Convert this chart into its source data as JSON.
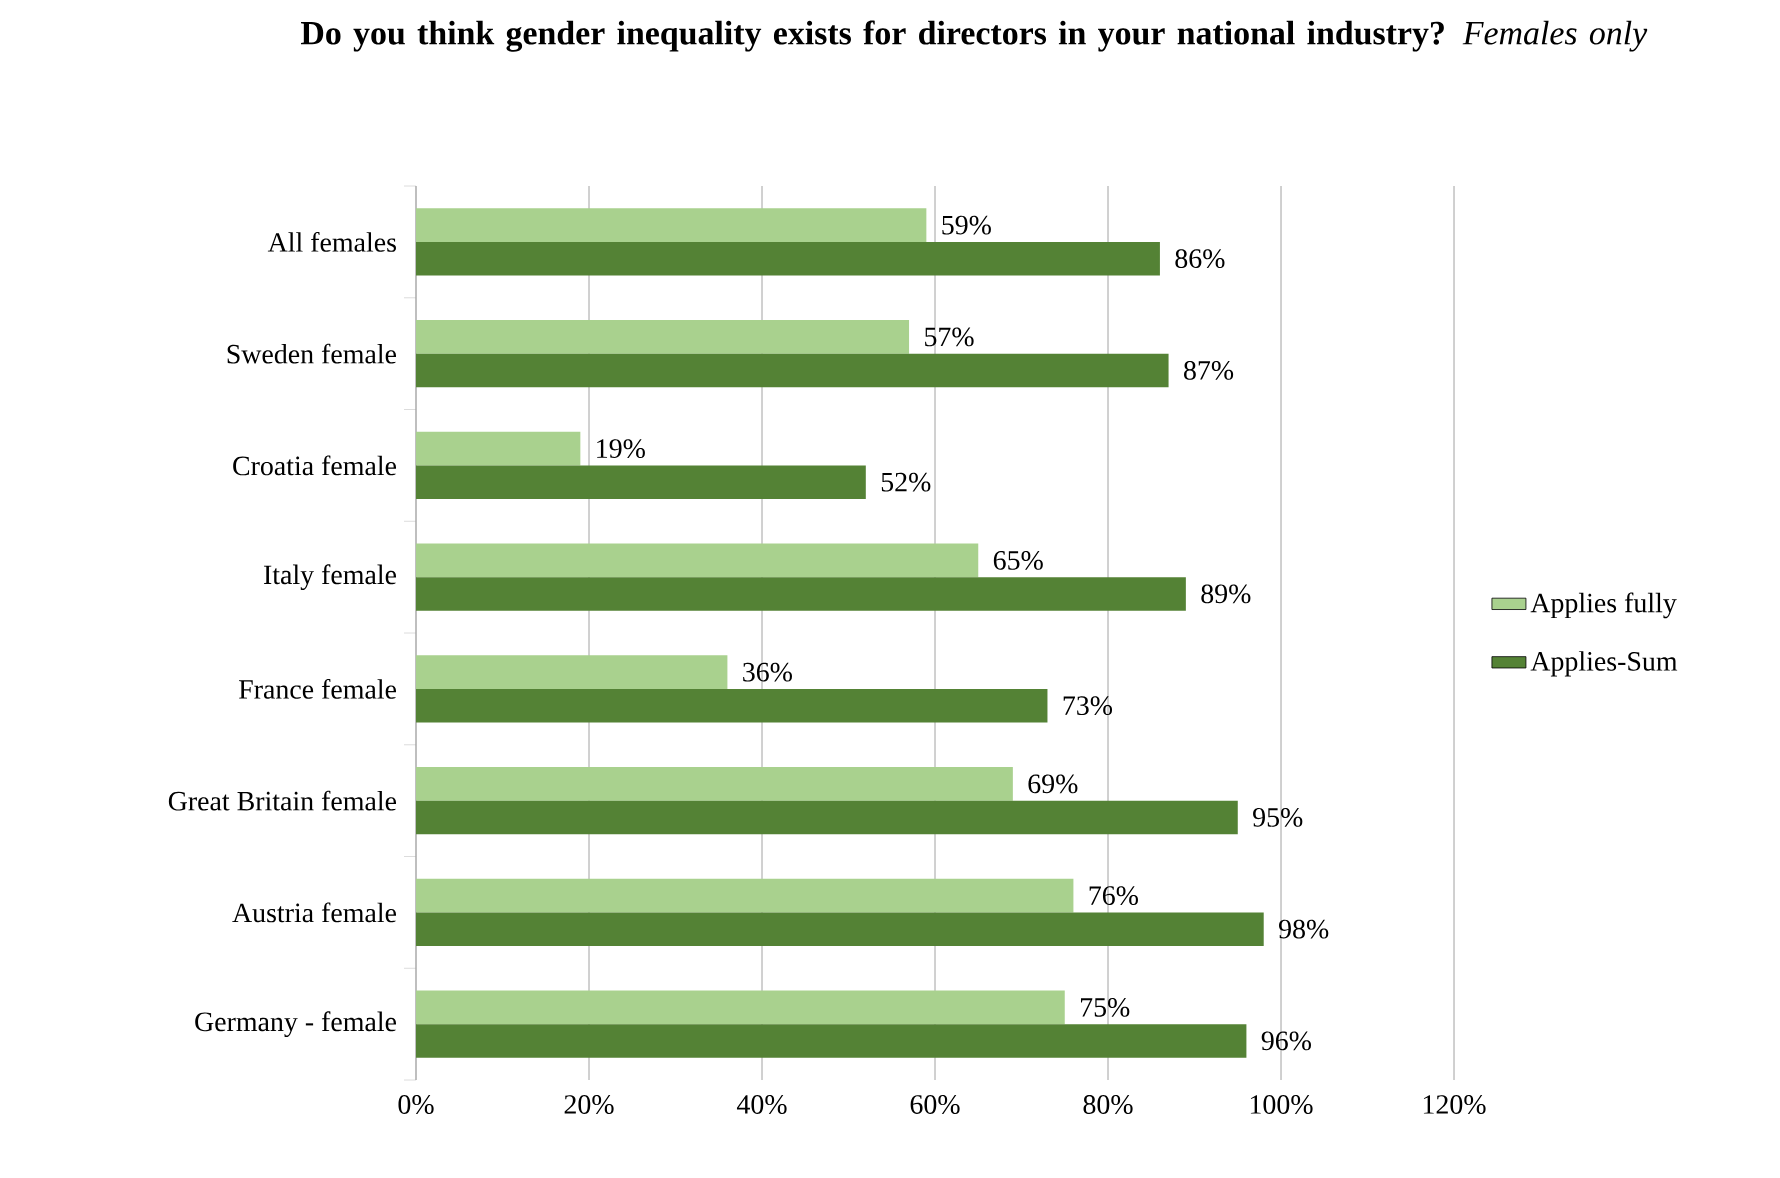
{
  "chart_data": {
    "type": "bar",
    "orientation": "horizontal",
    "title": "**Do you think gender inequality exists for directors in your national industry?** *Females only*",
    "categories": [
      "All females",
      "Sweden female",
      "Croatia female",
      "Italy female",
      "France female",
      "Great Britain female",
      "Austria female",
      "Germany - female"
    ],
    "series": [
      {
        "name": "Applies fully",
        "color": "#a9d18e",
        "values": [
          59,
          57,
          19,
          65,
          36,
          69,
          76,
          75
        ],
        "value_labels": [
          "59%",
          "57%",
          "19%",
          "65%",
          "36%",
          "69%",
          "76%",
          "75%"
        ]
      },
      {
        "name": "Applies-Sum",
        "color": "#548235",
        "values": [
          86,
          87,
          52,
          89,
          73,
          95,
          98,
          96
        ],
        "value_labels": [
          "86%",
          "87%",
          "52%",
          "89%",
          "73%",
          "95%",
          "98%",
          "96%"
        ]
      }
    ],
    "xlim": [
      0,
      120
    ],
    "xticks": [
      {
        "value": 0,
        "label": "0%"
      },
      {
        "value": 20,
        "label": "20%"
      },
      {
        "value": 40,
        "label": "40%"
      },
      {
        "value": 60,
        "label": "60%"
      },
      {
        "value": 80,
        "label": "80%"
      },
      {
        "value": 100,
        "label": "100%"
      },
      {
        "value": 120,
        "label": "120%"
      }
    ],
    "grid": "x",
    "legend": "right"
  }
}
